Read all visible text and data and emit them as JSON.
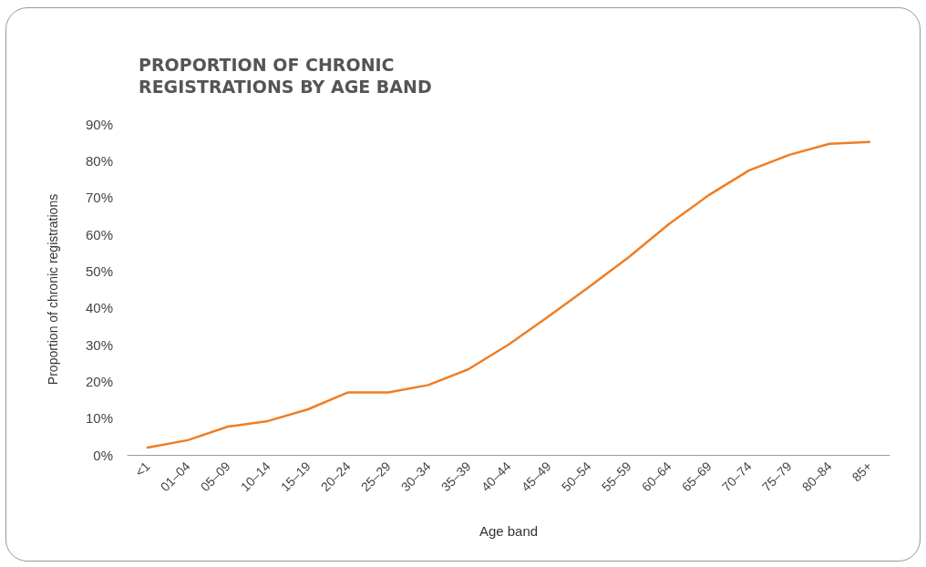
{
  "chart_data": {
    "type": "line",
    "title": "PROPORTION OF CHRONIC\nREGISTRATIONS BY AGE BAND",
    "xlabel": "Age band",
    "ylabel": "Proportion of chronic registrations",
    "categories": [
      "<1",
      "01–04",
      "05–09",
      "10–14",
      "15–19",
      "20–24",
      "25–29",
      "30–34",
      "35–39",
      "40–44",
      "45–49",
      "50–54",
      "55–59",
      "60–64",
      "65–69",
      "70–74",
      "75–79",
      "80–84",
      "85+"
    ],
    "series": [
      {
        "color": "#f07d22",
        "values": [
          2,
          4,
          7.7,
          9.2,
          12.4,
          17,
          17,
          19,
          23.3,
          30,
          37.7,
          45.6,
          53.8,
          62.8,
          70.7,
          77.4,
          81.6,
          84.6,
          85.1
        ]
      }
    ],
    "ylim": [
      0,
      90
    ],
    "yticks": [
      {
        "value": 0,
        "label": "0%"
      },
      {
        "value": 10,
        "label": "10%"
      },
      {
        "value": 20,
        "label": "20%"
      },
      {
        "value": 30,
        "label": "30%"
      },
      {
        "value": 40,
        "label": "40%"
      },
      {
        "value": 50,
        "label": "50%"
      },
      {
        "value": 60,
        "label": "60%"
      },
      {
        "value": 70,
        "label": "70%"
      },
      {
        "value": 80,
        "label": "80%"
      },
      {
        "value": 90,
        "label": "90%"
      }
    ],
    "grid": false,
    "marker": "none",
    "line_style": "solid"
  }
}
